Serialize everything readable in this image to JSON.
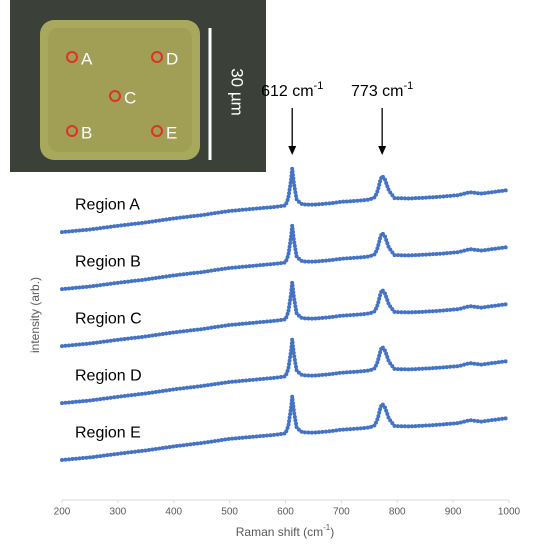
{
  "chart_data": {
    "type": "line",
    "x_label": {
      "text": "Raman shift (cm",
      "sup": "-1",
      "end": ")"
    },
    "y_label": "intensity (arb.)",
    "x": [
      200,
      250,
      300,
      350,
      400,
      450,
      500,
      550,
      580,
      600,
      605,
      610,
      612,
      615,
      620,
      630,
      650,
      680,
      700,
      730,
      750,
      760,
      765,
      770,
      773,
      778,
      785,
      795,
      820,
      850,
      880,
      910,
      930,
      950,
      970,
      1000
    ],
    "series": [
      {
        "name": "Region A",
        "color": "#4472c4",
        "values": [
          72.4,
          73.1,
          74.1,
          75,
          76.1,
          77,
          78.1,
          78.8,
          79.2,
          79.6,
          81.6,
          86.6,
          89.6,
          85.6,
          81.1,
          79.9,
          79.8,
          80.2,
          80.6,
          80.9,
          81.2,
          81.8,
          83.6,
          86.6,
          87.6,
          86.6,
          83.6,
          81.6,
          81.5,
          81.7,
          82,
          82.4,
          83.2,
          82.8,
          83.2,
          83.8
        ]
      },
      {
        "name": "Region B",
        "color": "#4472c4",
        "values": [
          57,
          57.7,
          58.7,
          59.6,
          60.7,
          61.6,
          62.7,
          63.4,
          63.8,
          64.2,
          66.2,
          71.2,
          74.2,
          70.2,
          65.7,
          64.5,
          64.4,
          64.8,
          65.2,
          65.5,
          65.8,
          66.4,
          68.2,
          71.2,
          72.2,
          71.2,
          68.2,
          66.2,
          66.1,
          66.3,
          66.6,
          67,
          67.8,
          67.4,
          67.8,
          68.4
        ]
      },
      {
        "name": "Region C",
        "color": "#4472c4",
        "values": [
          41.6,
          42.3,
          43.3,
          44.2,
          45.3,
          46.2,
          47.3,
          48,
          48.4,
          48.8,
          50.8,
          55.8,
          58.8,
          54.8,
          50.3,
          49.1,
          49,
          49.4,
          49.8,
          50.1,
          50.4,
          51,
          52.8,
          55.8,
          56.8,
          55.8,
          52.8,
          50.8,
          50.7,
          50.9,
          51.2,
          51.6,
          52.4,
          52,
          52.4,
          53
        ]
      },
      {
        "name": "Region D",
        "color": "#4472c4",
        "values": [
          26.2,
          26.9,
          27.9,
          28.8,
          29.9,
          30.8,
          31.9,
          32.6,
          33,
          33.4,
          35.4,
          40.4,
          43.4,
          39.4,
          34.9,
          33.7,
          33.6,
          34,
          34.4,
          34.7,
          35,
          35.6,
          37.4,
          40.4,
          41.4,
          40.4,
          37.4,
          35.4,
          35.3,
          35.5,
          35.8,
          36.2,
          37,
          36.6,
          37,
          37.6
        ]
      },
      {
        "name": "Region E",
        "color": "#4472c4",
        "values": [
          10.8,
          11.5,
          12.5,
          13.4,
          14.5,
          15.4,
          16.5,
          17.2,
          17.6,
          18,
          20,
          25,
          28,
          24,
          19.5,
          18.3,
          18.2,
          18.6,
          19,
          19.3,
          19.6,
          20.2,
          22,
          25,
          26,
          25,
          22,
          20,
          19.9,
          20.1,
          20.4,
          20.8,
          21.6,
          21.2,
          21.6,
          22.2
        ]
      }
    ],
    "xlim": [
      200,
      1000
    ],
    "xticks": [
      200,
      300,
      400,
      500,
      600,
      700,
      800,
      900,
      1000
    ],
    "ylim": [
      0,
      100
    ],
    "annotations": [
      {
        "label": "612 cm",
        "sup": "-1",
        "x": 612
      },
      {
        "label": "773 cm",
        "sup": "-1",
        "x": 773
      }
    ]
  },
  "inset": {
    "points": [
      "A",
      "B",
      "C",
      "D",
      "E"
    ],
    "scale_label": "30 µm"
  }
}
